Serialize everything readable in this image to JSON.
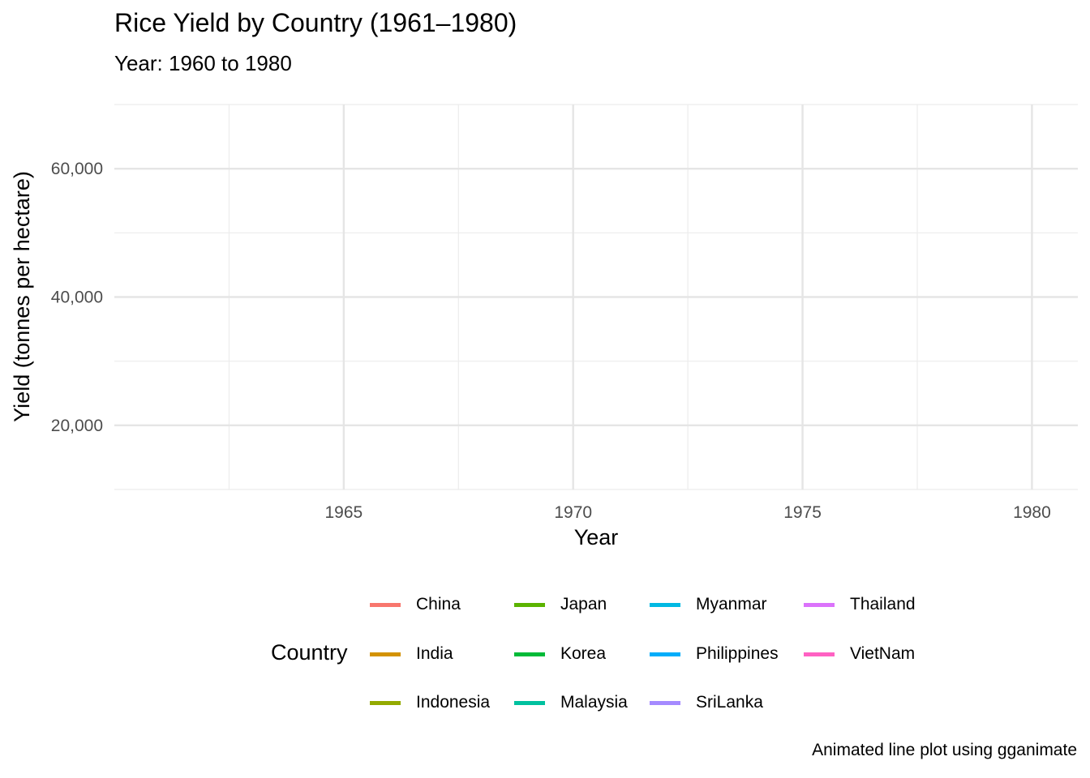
{
  "title": "Rice Yield by Country (1961–1980)",
  "subtitle": "Year: 1960 to 1980",
  "caption": "Animated line plot using gganimate",
  "chart_data": {
    "type": "line",
    "title": "Rice Yield by Country (1961–1980)",
    "subtitle": "Year: 1960 to 1980",
    "xlabel": "Year",
    "ylabel": "Yield (tonnes per hectare)",
    "xlim": [
      1960,
      1981
    ],
    "ylim": [
      10000,
      70000
    ],
    "x_ticks": [
      1965,
      1970,
      1975,
      1980
    ],
    "x_tick_labels": [
      "1965",
      "1970",
      "1975",
      "1980"
    ],
    "y_ticks": [
      20000,
      40000,
      60000
    ],
    "y_tick_labels": [
      "20,000",
      "40,000",
      "60,000"
    ],
    "grid": true,
    "legend_title": "Country",
    "legend_position": "bottom",
    "series": [
      {
        "name": "China",
        "color": "#F8766D",
        "values": []
      },
      {
        "name": "India",
        "color": "#D39200",
        "values": []
      },
      {
        "name": "Indonesia",
        "color": "#93AA00",
        "values": []
      },
      {
        "name": "Japan",
        "color": "#5BB300",
        "values": []
      },
      {
        "name": "Korea",
        "color": "#00BA38",
        "values": []
      },
      {
        "name": "Malaysia",
        "color": "#00C19F",
        "values": []
      },
      {
        "name": "Myanmar",
        "color": "#00B9E3",
        "values": []
      },
      {
        "name": "Philippines",
        "color": "#00ADFA",
        "values": []
      },
      {
        "name": "SriLanka",
        "color": "#A58AFF",
        "values": []
      },
      {
        "name": "Thailand",
        "color": "#DB72FB",
        "values": []
      },
      {
        "name": "VietNam",
        "color": "#FF61C3",
        "values": []
      }
    ]
  }
}
